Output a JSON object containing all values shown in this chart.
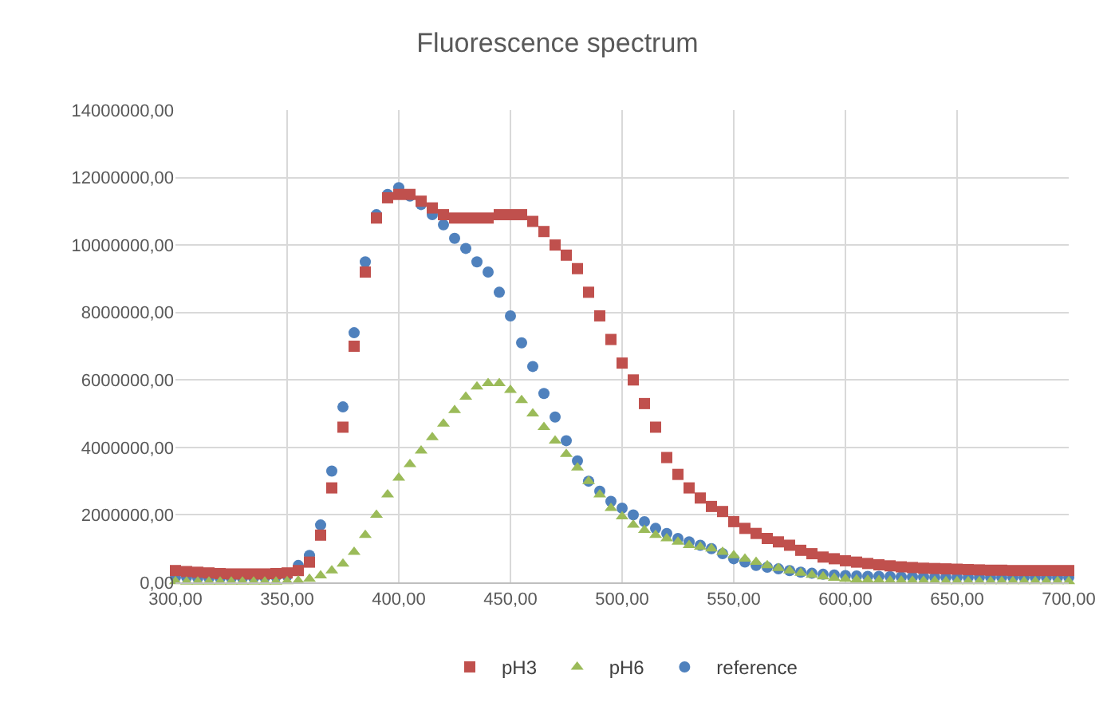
{
  "chart_data": {
    "type": "scatter",
    "title": "Fluorescence spectrum",
    "x": [
      300,
      305,
      310,
      315,
      320,
      325,
      330,
      335,
      340,
      345,
      350,
      355,
      360,
      365,
      370,
      375,
      380,
      385,
      390,
      395,
      400,
      405,
      410,
      415,
      420,
      425,
      430,
      435,
      440,
      445,
      450,
      455,
      460,
      465,
      470,
      475,
      480,
      485,
      490,
      495,
      500,
      505,
      510,
      515,
      520,
      525,
      530,
      535,
      540,
      545,
      550,
      555,
      560,
      565,
      570,
      575,
      580,
      585,
      590,
      595,
      600,
      605,
      610,
      615,
      620,
      625,
      630,
      635,
      640,
      645,
      650,
      655,
      660,
      665,
      670,
      675,
      680,
      685,
      690,
      695,
      700
    ],
    "series": [
      {
        "name": "pH3",
        "color": "#c0504d",
        "marker": "square",
        "values": [
          350000,
          320000,
          300000,
          280000,
          260000,
          250000,
          250000,
          250000,
          250000,
          260000,
          280000,
          350000,
          600000,
          1400000,
          2800000,
          4600000,
          7000000,
          9200000,
          10800000,
          11400000,
          11500000,
          11500000,
          11300000,
          11100000,
          10900000,
          10800000,
          10800000,
          10800000,
          10800000,
          10900000,
          10900000,
          10900000,
          10700000,
          10400000,
          10000000,
          9700000,
          9300000,
          8600000,
          7900000,
          7200000,
          6500000,
          6000000,
          5300000,
          4600000,
          3700000,
          3200000,
          2800000,
          2500000,
          2250000,
          2100000,
          1800000,
          1600000,
          1450000,
          1300000,
          1200000,
          1100000,
          950000,
          850000,
          750000,
          700000,
          640000,
          600000,
          560000,
          520000,
          490000,
          460000,
          440000,
          420000,
          410000,
          400000,
          390000,
          380000,
          370000,
          360000,
          360000,
          350000,
          350000,
          350000,
          350000,
          350000,
          350000
        ]
      },
      {
        "name": "pH6",
        "color": "#9bbb59",
        "marker": "triangle",
        "values": [
          30000,
          20000,
          20000,
          20000,
          20000,
          20000,
          20000,
          20000,
          20000,
          20000,
          30000,
          50000,
          100000,
          200000,
          350000,
          550000,
          900000,
          1400000,
          2000000,
          2600000,
          3100000,
          3500000,
          3900000,
          4300000,
          4700000,
          5100000,
          5500000,
          5800000,
          5900000,
          5900000,
          5700000,
          5400000,
          5000000,
          4600000,
          4200000,
          3800000,
          3400000,
          3000000,
          2600000,
          2200000,
          1950000,
          1700000,
          1550000,
          1400000,
          1300000,
          1200000,
          1100000,
          1050000,
          1000000,
          900000,
          800000,
          700000,
          600000,
          500000,
          420000,
          350000,
          280000,
          220000,
          170000,
          130000,
          100000,
          80000,
          70000,
          60000,
          50000,
          50000,
          40000,
          40000,
          40000,
          30000,
          30000,
          30000,
          30000,
          30000,
          30000,
          30000,
          30000,
          30000,
          30000,
          30000,
          30000
        ]
      },
      {
        "name": "reference",
        "color": "#4f81bd",
        "marker": "circle",
        "values": [
          150000,
          150000,
          130000,
          130000,
          130000,
          130000,
          130000,
          140000,
          150000,
          170000,
          200000,
          500000,
          800000,
          1700000,
          3300000,
          5200000,
          7400000,
          9500000,
          10900000,
          11500000,
          11700000,
          11450000,
          11200000,
          10900000,
          10600000,
          10200000,
          9900000,
          9500000,
          9200000,
          8600000,
          7900000,
          7100000,
          6400000,
          5600000,
          4900000,
          4200000,
          3600000,
          3000000,
          2700000,
          2400000,
          2200000,
          2000000,
          1800000,
          1600000,
          1450000,
          1300000,
          1200000,
          1100000,
          1000000,
          850000,
          700000,
          600000,
          500000,
          450000,
          400000,
          350000,
          300000,
          270000,
          240000,
          220000,
          200000,
          190000,
          180000,
          180000,
          170000,
          160000,
          160000,
          160000,
          150000,
          150000,
          150000,
          150000,
          150000,
          150000,
          150000,
          150000,
          150000,
          150000,
          150000,
          150000,
          150000
        ]
      }
    ],
    "xlim": [
      300,
      700
    ],
    "xticks": [
      {
        "value": 300,
        "label": "300,00"
      },
      {
        "value": 350,
        "label": "350,00"
      },
      {
        "value": 400,
        "label": "400,00"
      },
      {
        "value": 450,
        "label": "450,00"
      },
      {
        "value": 500,
        "label": "500,00"
      },
      {
        "value": 550,
        "label": "550,00"
      },
      {
        "value": 600,
        "label": "600,00"
      },
      {
        "value": 650,
        "label": "650,00"
      },
      {
        "value": 700,
        "label": "700,00"
      }
    ],
    "ylim": [
      0,
      14000000
    ],
    "yticks": [
      {
        "value": 0,
        "label": "0,00"
      },
      {
        "value": 2000000,
        "label": "2000000,00"
      },
      {
        "value": 4000000,
        "label": "4000000,00"
      },
      {
        "value": 6000000,
        "label": "6000000,00"
      },
      {
        "value": 8000000,
        "label": "8000000,00"
      },
      {
        "value": 10000000,
        "label": "10000000,00"
      },
      {
        "value": 12000000,
        "label": "12000000,00"
      },
      {
        "value": 14000000,
        "label": "14000000,00"
      }
    ],
    "grid": true,
    "legend": "bottom"
  }
}
